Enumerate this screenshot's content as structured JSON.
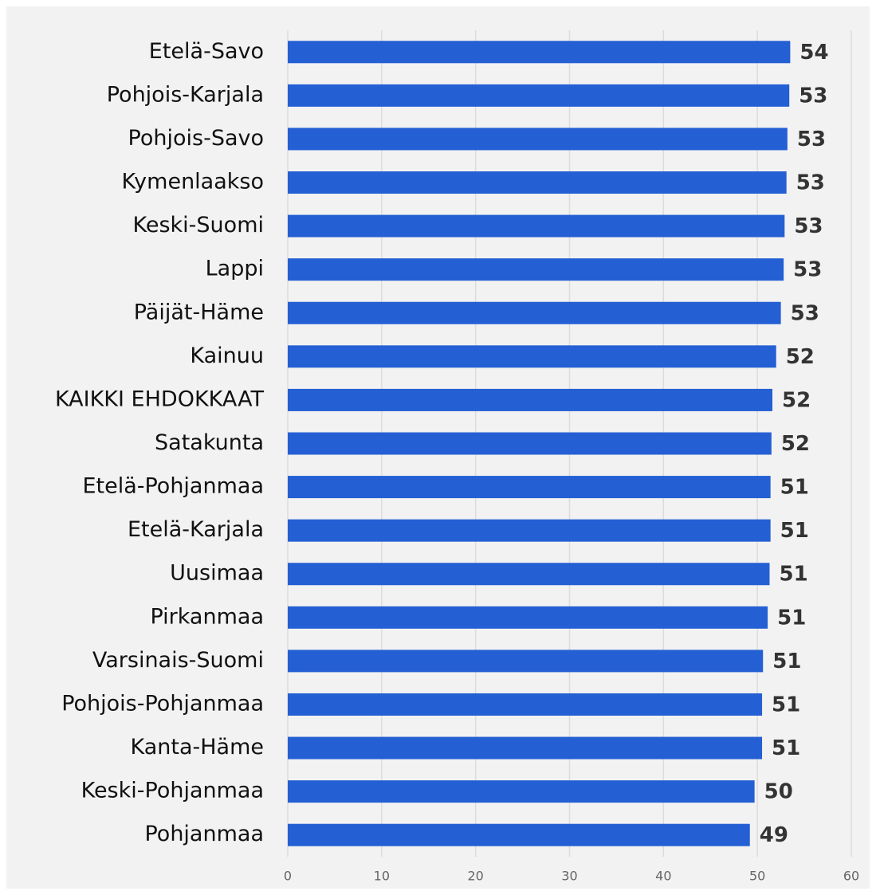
{
  "chart_data": {
    "type": "hbar",
    "categories": [
      "Etelä-Savo",
      "Pohjois-Karjala",
      "Pohjois-Savo",
      "Kymenlaakso",
      "Keski-Suomi",
      "Lappi",
      "Päijät-Häme",
      "Kainuu",
      "KAIKKI EHDOKKAAT",
      "Satakunta",
      "Etelä-Pohjanmaa",
      "Etelä-Karjala",
      "Uusimaa",
      "Pirkanmaa",
      "Varsinais-Suomi",
      "Pohjois-Pohjanmaa",
      "Kanta-Häme",
      "Keski-Pohjanmaa",
      "Pohjanmaa"
    ],
    "values": [
      53.5,
      53.4,
      53.2,
      53.1,
      52.9,
      52.8,
      52.5,
      52.0,
      51.6,
      51.5,
      51.4,
      51.4,
      51.3,
      51.1,
      50.6,
      50.5,
      50.5,
      49.7,
      49.2
    ],
    "value_labels": [
      "54",
      "53",
      "53",
      "53",
      "53",
      "53",
      "53",
      "52",
      "52",
      "52",
      "51",
      "51",
      "51",
      "51",
      "51",
      "51",
      "51",
      "50",
      "49"
    ],
    "color": "#245fd4",
    "xlim": [
      0,
      60
    ],
    "xticks": [
      0,
      10,
      20,
      30,
      40,
      50,
      60
    ],
    "grid": true
  }
}
